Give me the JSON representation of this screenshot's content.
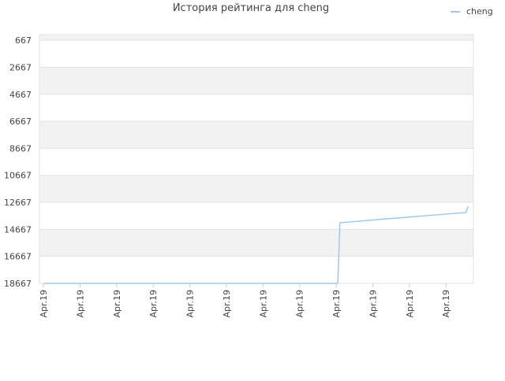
{
  "chart_data": {
    "type": "line",
    "title": "История рейтинга для cheng",
    "x": [
      0.02,
      8.04,
      8.06,
      8.1,
      8.9,
      9.8,
      10.7,
      11.55,
      11.6
    ],
    "series": [
      {
        "name": "cheng",
        "color": "#9ccaee",
        "values": [
          18667,
          18667,
          17500,
          14180,
          14000,
          13800,
          13600,
          13420,
          12960
        ]
      }
    ],
    "xlim": [
      -0.11,
      11.75
    ],
    "xticks": [
      {
        "value": 0,
        "label": "Apr.19"
      },
      {
        "value": 1,
        "label": "Apr.19"
      },
      {
        "value": 2,
        "label": "Apr.19"
      },
      {
        "value": 3,
        "label": "Apr.19"
      },
      {
        "value": 4,
        "label": "Apr.19"
      },
      {
        "value": 5,
        "label": "Apr.19"
      },
      {
        "value": 6,
        "label": "Apr.19"
      },
      {
        "value": 7,
        "label": "Apr.19"
      },
      {
        "value": 8,
        "label": "Apr.19"
      },
      {
        "value": 9,
        "label": "Apr.19"
      },
      {
        "value": 10,
        "label": "Apr.19"
      },
      {
        "value": 11,
        "label": "Apr.19"
      }
    ],
    "ylim": [
      18667,
      250
    ],
    "yticks": [
      667,
      2667,
      4667,
      6667,
      8667,
      10667,
      12667,
      14667,
      16667,
      18667
    ],
    "grid": true,
    "legend": "top-right"
  }
}
